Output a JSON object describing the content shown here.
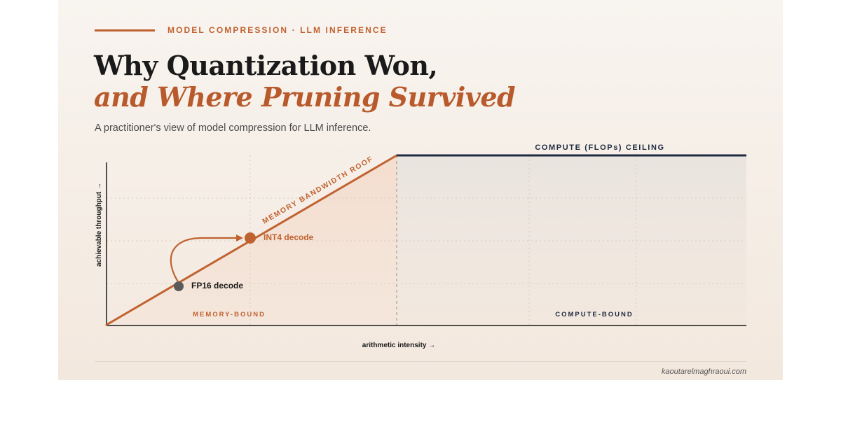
{
  "eyebrow": "MODEL COMPRESSION · LLM INFERENCE",
  "title_line1": "Why Quantization Won,",
  "title_line2": "and Where Pruning Survived",
  "subtitle": "A practitioner's view of model compression for LLM inference.",
  "diagram": {
    "roof_label": "MEMORY BANDWIDTH ROOF",
    "ceiling_label": "COMPUTE (FLOPs) CEILING",
    "y_axis_label": "achievable throughput →",
    "x_axis_label": "arithmetic intensity →",
    "region_left_label": "MEMORY-BOUND",
    "region_right_label": "COMPUTE-BOUND",
    "points": [
      {
        "label": "FP16 decode",
        "color": "#5a5a5a"
      },
      {
        "label": "INT4 decode",
        "color": "#c0622f"
      }
    ],
    "colors": {
      "accent": "#c0622f",
      "ceiling": "#1e2a3f",
      "axis": "#1a1a1a"
    }
  },
  "footer": "kaoutarelmaghraoui.com"
}
